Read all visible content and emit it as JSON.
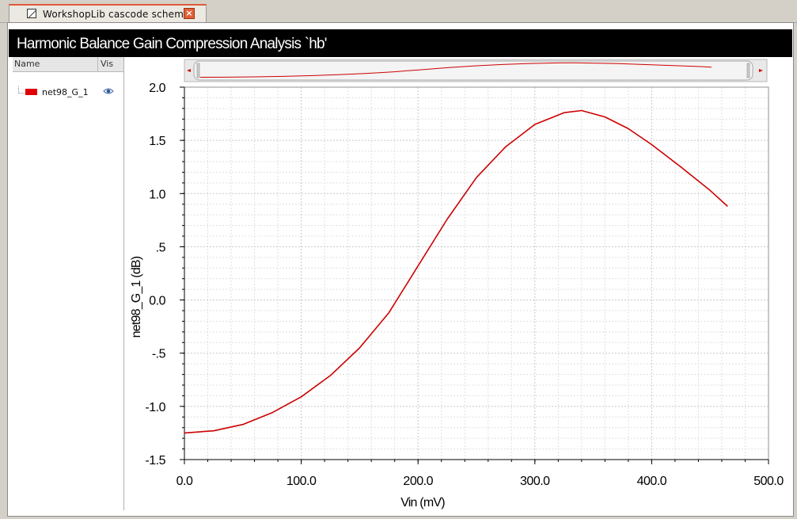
{
  "tab": {
    "label": "WorkshopLib cascode schem..."
  },
  "window": {
    "title": "Harmonic Balance Gain Compression Analysis `hb'"
  },
  "legend": {
    "headers": {
      "name": "Name",
      "vis": "Vis"
    },
    "items": [
      {
        "name": "net98_G_1",
        "color": "#e00000",
        "icon": "eye-icon"
      }
    ]
  },
  "chart_data": {
    "type": "line",
    "xlabel": "Vin (mV)",
    "ylabel": "net98_G_1 (dB)",
    "xlim": [
      0,
      500
    ],
    "ylim": [
      -1.5,
      2.0
    ],
    "x_ticks": [
      0,
      100,
      200,
      300,
      400,
      500
    ],
    "x_tick_labels": [
      "0.0",
      "100.0",
      "200.0",
      "300.0",
      "400.0",
      "500.0"
    ],
    "y_ticks": [
      2.0,
      1.5,
      1.0,
      0.5,
      0.0,
      -0.5,
      -1.0,
      -1.5
    ],
    "y_tick_labels": [
      "2.0",
      "1.5",
      "1.0",
      ".5",
      "0.0",
      "-.5",
      "-1.0",
      "-1.5"
    ],
    "grid": true,
    "series": [
      {
        "name": "net98_G_1",
        "color": "#cc0000",
        "x": [
          0,
          25,
          50,
          75,
          100,
          125,
          150,
          175,
          200,
          225,
          250,
          275,
          300,
          325,
          340,
          360,
          380,
          400,
          425,
          450,
          465
        ],
        "y": [
          -1.25,
          -1.23,
          -1.17,
          -1.06,
          -0.91,
          -0.71,
          -0.45,
          -0.12,
          0.32,
          0.76,
          1.15,
          1.44,
          1.65,
          1.76,
          1.78,
          1.72,
          1.61,
          1.46,
          1.25,
          1.03,
          0.88
        ]
      }
    ]
  }
}
